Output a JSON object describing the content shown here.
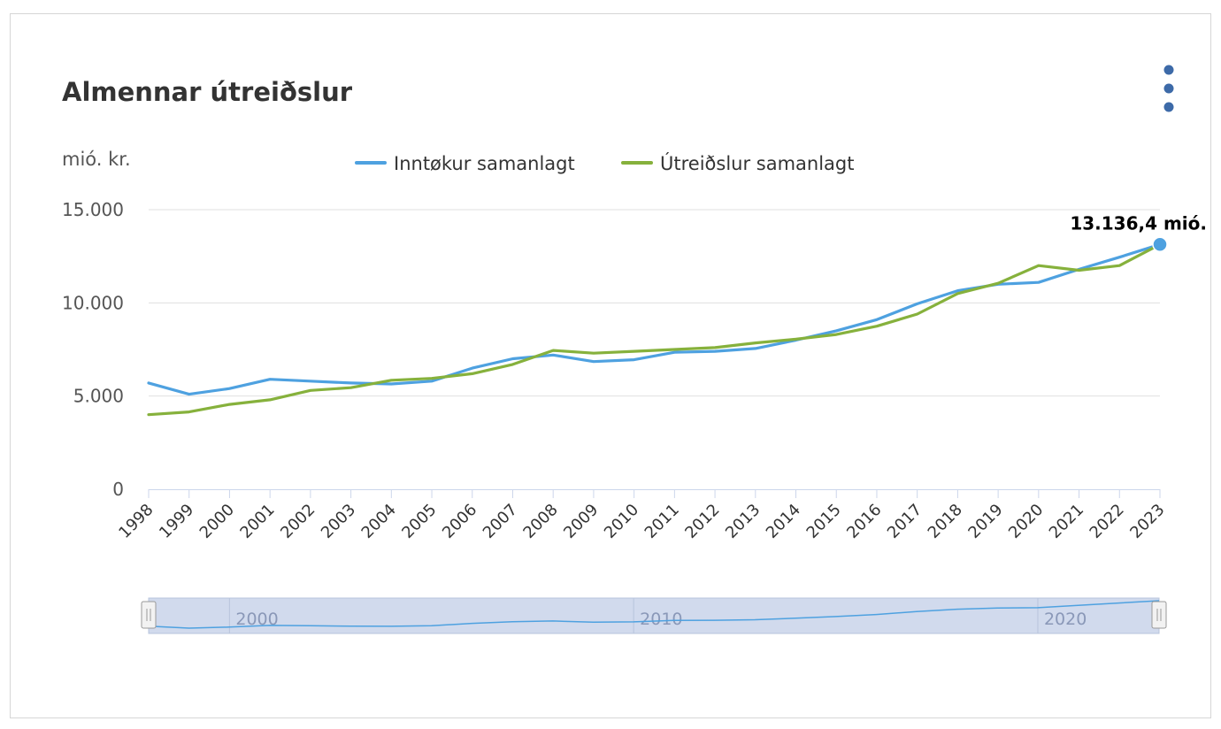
{
  "title": "Almennar útreiðslur",
  "menu_icon": "kebab-menu-icon",
  "colors": {
    "series_income": "#4ea1e0",
    "series_expense": "#86b13c",
    "grid": "#e0e0e0",
    "navigator_fill": "#ccd6eb",
    "text": "#333333",
    "axis_text": "#555555"
  },
  "chart_data": {
    "type": "line",
    "title": "Almennar útreiðslur",
    "ylabel": "mió. kr.",
    "xlabel": "",
    "ylim": [
      0,
      15000
    ],
    "y_ticks": [
      0,
      5000,
      10000,
      15000
    ],
    "y_tick_labels": [
      "0",
      "5.000",
      "10.000",
      "15.000"
    ],
    "grid": true,
    "legend_position": "top-center",
    "x": [
      1998,
      1999,
      2000,
      2001,
      2002,
      2003,
      2004,
      2005,
      2006,
      2007,
      2008,
      2009,
      2010,
      2011,
      2012,
      2013,
      2014,
      2015,
      2016,
      2017,
      2018,
      2019,
      2020,
      2021,
      2022,
      2023
    ],
    "x_tick_labels": [
      "1998",
      "1999",
      "2000",
      "2001",
      "2002",
      "2003",
      "2004",
      "2005",
      "2006",
      "2007",
      "2008",
      "2009",
      "2010",
      "2011",
      "2012",
      "2013",
      "2014",
      "2015",
      "2016",
      "2017",
      "2018",
      "2019",
      "2020",
      "2021",
      "2022",
      "2023"
    ],
    "series": [
      {
        "name": "Inntøkur samanlagt",
        "color": "#4ea1e0",
        "values": [
          5700,
          5100,
          5400,
          5900,
          5800,
          5700,
          5650,
          5800,
          6500,
          7000,
          7200,
          6850,
          6950,
          7350,
          7400,
          7550,
          8000,
          8500,
          9100,
          9950,
          10650,
          11000,
          11100,
          11800,
          12450,
          13136.4
        ]
      },
      {
        "name": "Útreiðslur samanlagt",
        "color": "#86b13c",
        "values": [
          4000,
          4150,
          4550,
          4800,
          5300,
          5450,
          5850,
          5950,
          6200,
          6700,
          7450,
          7300,
          7400,
          7500,
          7600,
          7850,
          8050,
          8300,
          8750,
          9400,
          10500,
          11050,
          12000,
          11750,
          12000,
          13136.4
        ]
      }
    ],
    "highlight": {
      "series": 0,
      "index": 25,
      "label": "13.136,4 mió."
    },
    "navigator": {
      "tick_labels": [
        "2000",
        "2010",
        "2020"
      ],
      "tick_years": [
        2000,
        2010,
        2020
      ],
      "range": [
        1998,
        2023
      ]
    }
  }
}
